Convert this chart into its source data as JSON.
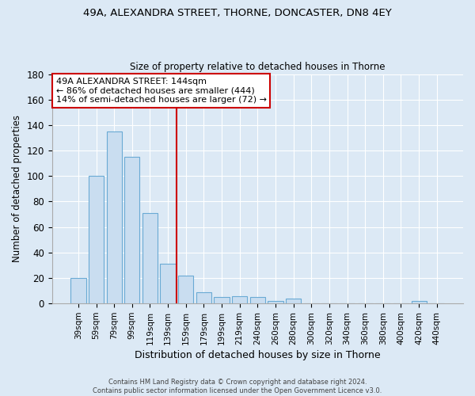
{
  "title": "49A, ALEXANDRA STREET, THORNE, DONCASTER, DN8 4EY",
  "subtitle": "Size of property relative to detached houses in Thorne",
  "xlabel": "Distribution of detached houses by size in Thorne",
  "ylabel": "Number of detached properties",
  "bar_labels": [
    "39sqm",
    "59sqm",
    "79sqm",
    "99sqm",
    "119sqm",
    "139sqm",
    "159sqm",
    "179sqm",
    "199sqm",
    "219sqm",
    "240sqm",
    "260sqm",
    "280sqm",
    "300sqm",
    "320sqm",
    "340sqm",
    "360sqm",
    "380sqm",
    "400sqm",
    "420sqm",
    "440sqm"
  ],
  "bar_values": [
    20,
    100,
    135,
    115,
    71,
    31,
    22,
    9,
    5,
    6,
    5,
    2,
    4,
    0,
    0,
    0,
    0,
    0,
    0,
    2,
    0
  ],
  "bar_color": "#c9ddf0",
  "bar_edge_color": "#6aaad4",
  "vline_color": "#cc0000",
  "annotation_line1": "49A ALEXANDRA STREET: 144sqm",
  "annotation_line2": "← 86% of detached houses are smaller (444)",
  "annotation_line3": "14% of semi-detached houses are larger (72) →",
  "annotation_box_color": "#ffffff",
  "annotation_box_edge": "#cc0000",
  "ylim": [
    0,
    180
  ],
  "yticks": [
    0,
    20,
    40,
    60,
    80,
    100,
    120,
    140,
    160,
    180
  ],
  "footer1": "Contains HM Land Registry data © Crown copyright and database right 2024.",
  "footer2": "Contains public sector information licensed under the Open Government Licence v3.0.",
  "bg_color": "#dce9f5",
  "plot_bg_color": "#dce9f5",
  "grid_color": "#ffffff"
}
